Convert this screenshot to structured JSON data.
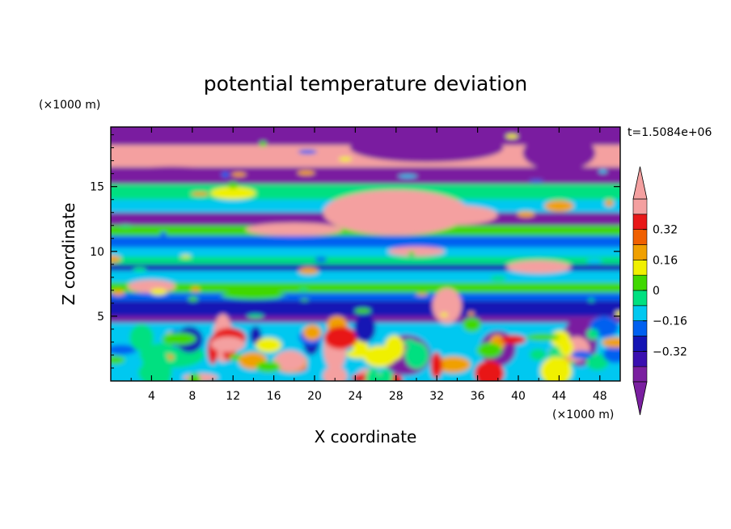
{
  "chart_data": {
    "type": "heatmap",
    "title": "potential temperature deviation",
    "xlabel": "X coordinate",
    "ylabel": "Z coordinate",
    "x_unit": "(×1000 m)",
    "y_unit": "(×1000 m)",
    "time_label": "t=1.5084e+06",
    "xlim": [
      0,
      50
    ],
    "ylim": [
      0,
      19.6
    ],
    "x_ticks": [
      "4",
      "8",
      "12",
      "16",
      "20",
      "24",
      "28",
      "32",
      "36",
      "40",
      "44",
      "48"
    ],
    "y_ticks": [
      "5",
      "10",
      "15"
    ],
    "colorbar": {
      "levels": [
        -0.48,
        -0.4,
        -0.32,
        -0.24,
        -0.16,
        -0.08,
        0,
        0.08,
        0.16,
        0.24,
        0.32,
        0.4
      ],
      "tick_labels": [
        "0.32",
        "0.16",
        "0",
        "-0.16",
        "-0.32"
      ],
      "extend": "both"
    },
    "colors": {
      "below": "#7a1fa0",
      "bands": [
        "#7a1fa0",
        "#3a0fb0",
        "#1414b4",
        "#0060f0",
        "#00c8f0",
        "#00e080",
        "#40d800",
        "#f0f000",
        "#f0a000",
        "#f06000",
        "#e81818",
        "#f4a0a0"
      ],
      "above": "#f4a0a0"
    },
    "field_description": "alternating horizontal stratified layers of positive and negative deviation above 5 km; convective cells below 5 km"
  }
}
